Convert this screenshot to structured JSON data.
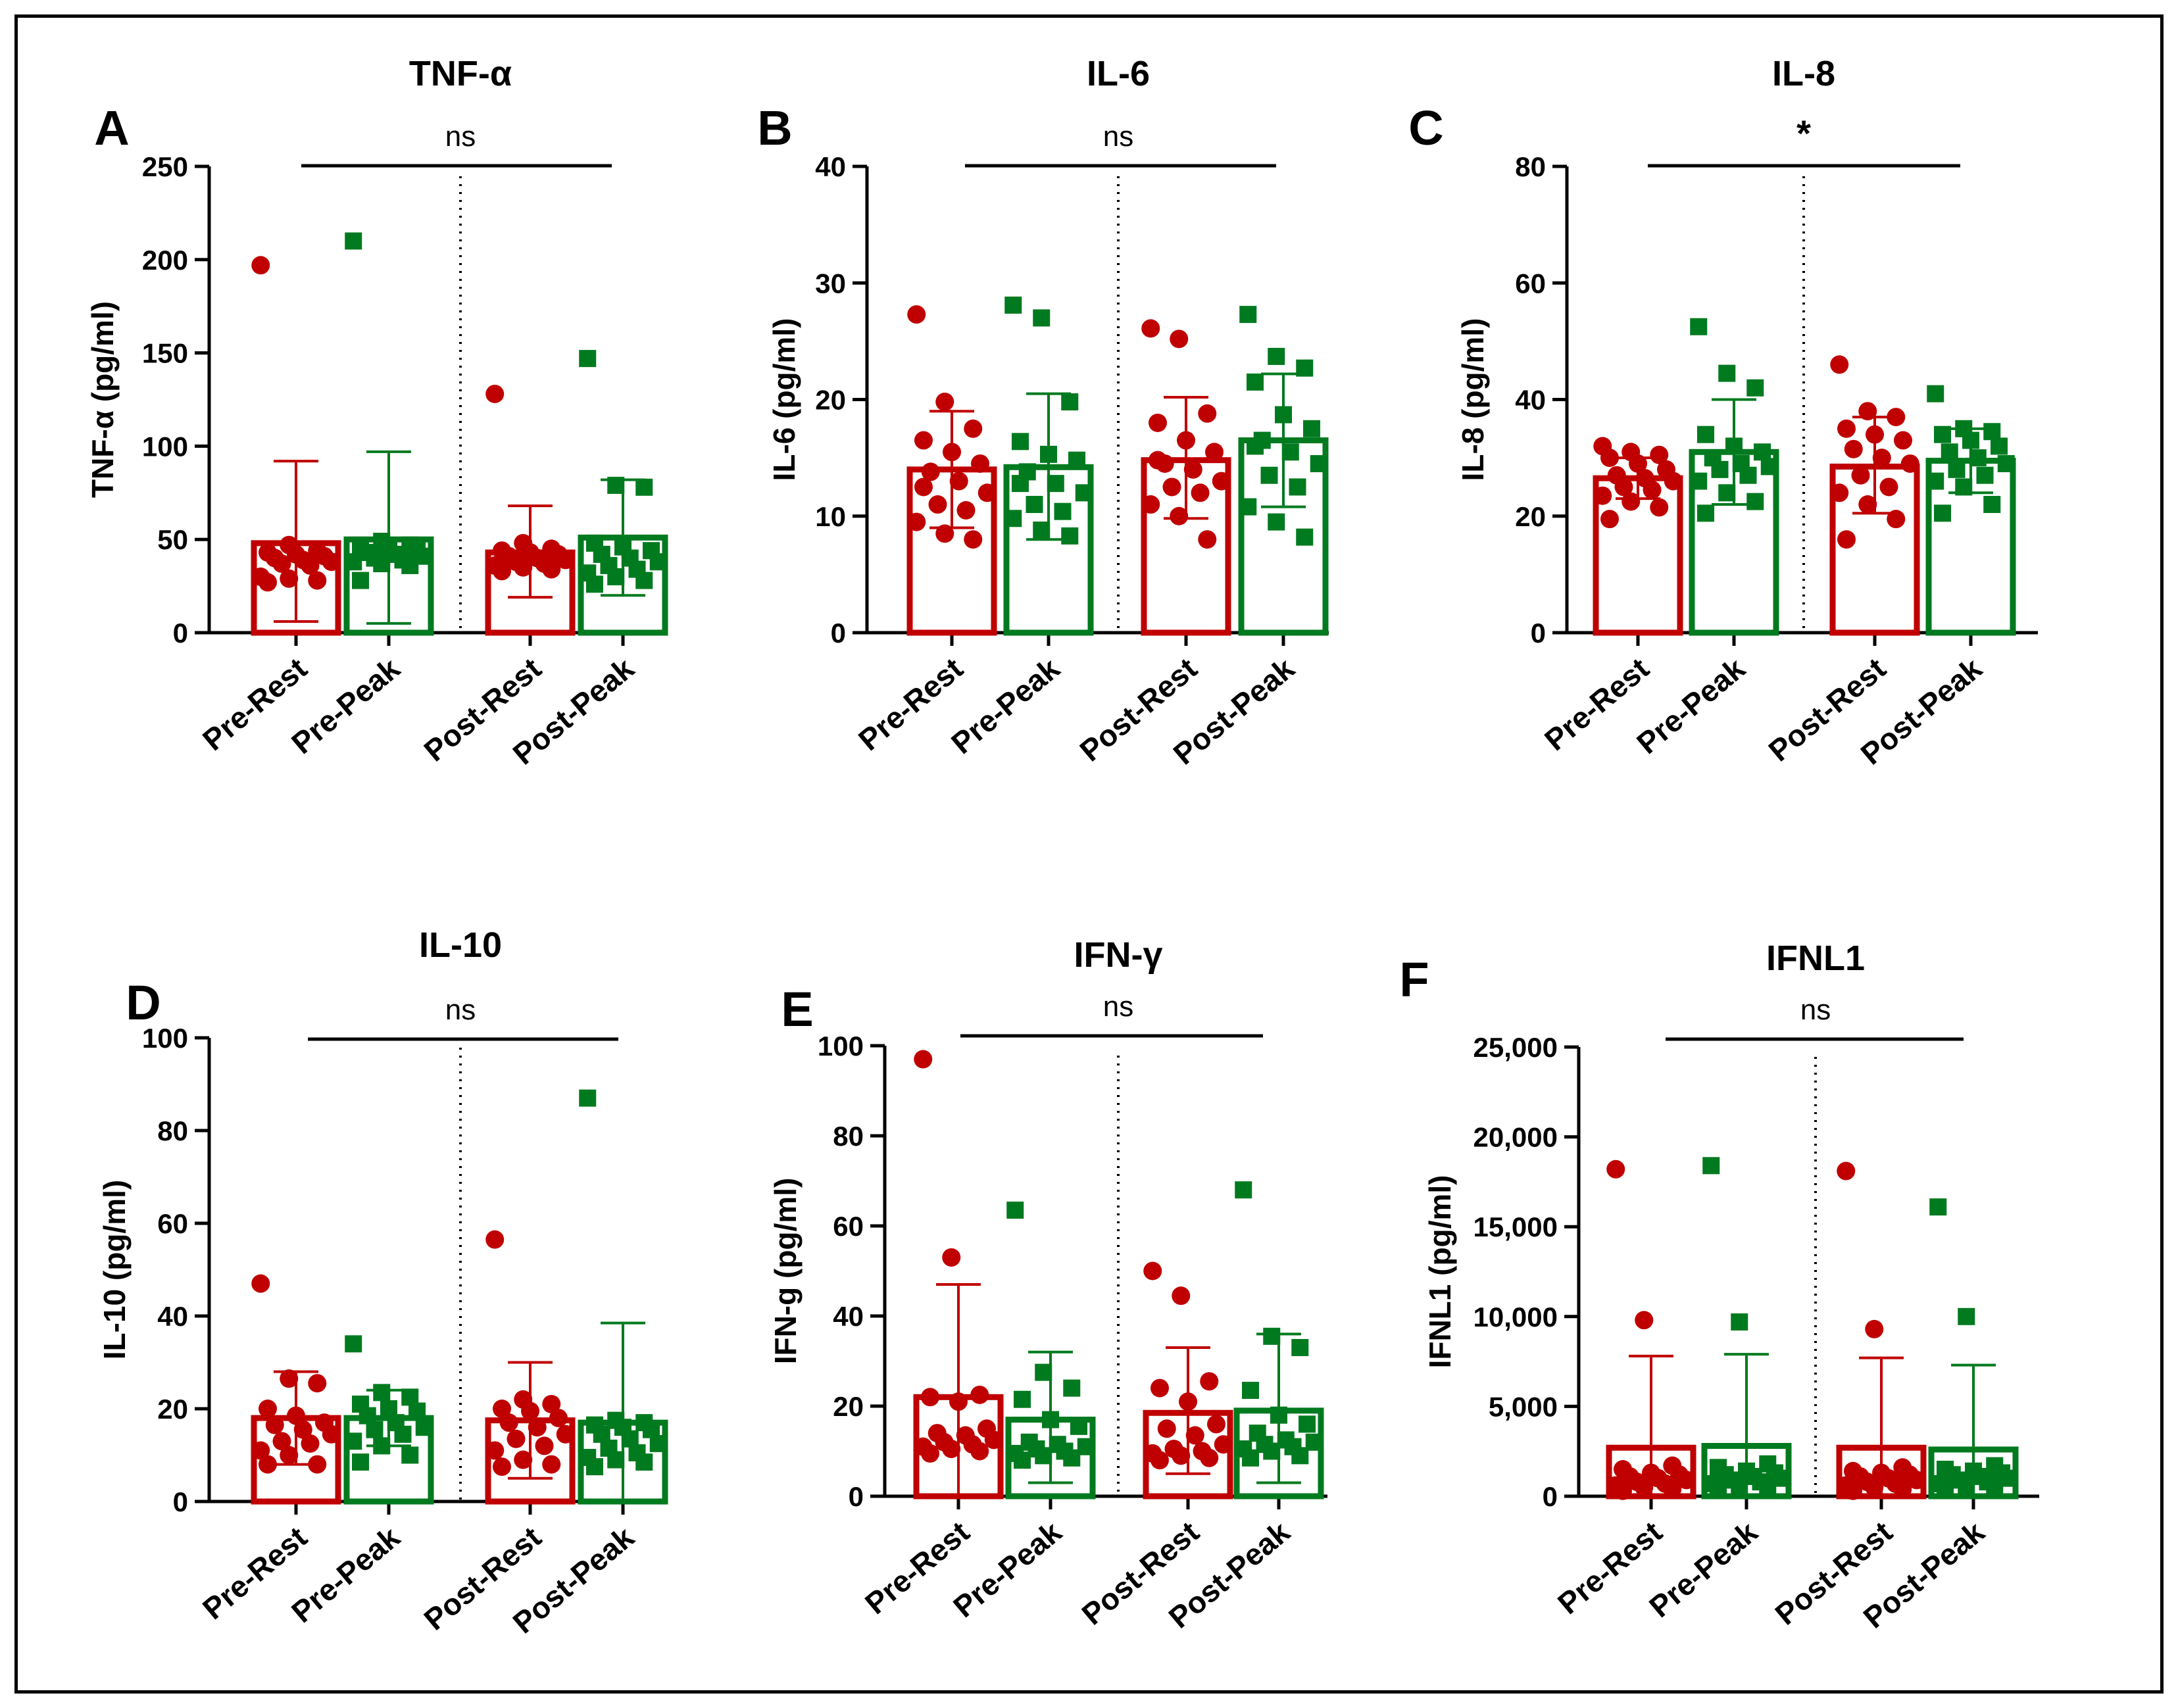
{
  "figure": {
    "panel_letters": [
      "A",
      "B",
      "C",
      "D",
      "E",
      "F"
    ]
  },
  "chart_data": [
    {
      "type": "bar",
      "letter": "A",
      "title": "TNF-α",
      "ylabel": "TNF-α (pg/ml)",
      "ylim": [
        0,
        250
      ],
      "yticks": [
        0,
        50,
        100,
        150,
        200,
        250
      ],
      "ytick_labels": [
        "0",
        "50",
        "100",
        "150",
        "200",
        "250"
      ],
      "categories": [
        "Pre-Rest",
        "Pre-Peak",
        "Post-Rest",
        "Post-Peak"
      ],
      "series_colors": [
        "#c00000",
        "#007a1f",
        "#c00000",
        "#007a1f"
      ],
      "markers": [
        "circle",
        "square",
        "circle",
        "square"
      ],
      "means": [
        48,
        50,
        43,
        51
      ],
      "error_upper": [
        92,
        97,
        68,
        82
      ],
      "error_lower": [
        6,
        5,
        19,
        20
      ],
      "points": [
        [
          197,
          47,
          44,
          43,
          42,
          41,
          40,
          39,
          38,
          37,
          36,
          30,
          29,
          28,
          27
        ],
        [
          210,
          49,
          47,
          46,
          45,
          44,
          43,
          42,
          41,
          40,
          39,
          38,
          37,
          36,
          28
        ],
        [
          128,
          48,
          45,
          44,
          43,
          42,
          41,
          40,
          39,
          38,
          37,
          36,
          35,
          34,
          33
        ],
        [
          147,
          79,
          78,
          48,
          46,
          44,
          42,
          40,
          38,
          36,
          34,
          32,
          30,
          28,
          26
        ]
      ],
      "significance": "ns"
    },
    {
      "type": "bar",
      "letter": "B",
      "title": "IL-6",
      "ylabel": "IL-6 (pg/ml)",
      "ylim": [
        0,
        40
      ],
      "yticks": [
        0,
        10,
        20,
        30,
        40
      ],
      "ytick_labels": [
        "0",
        "10",
        "20",
        "30",
        "40"
      ],
      "categories": [
        "Pre-Rest",
        "Pre-Peak",
        "Post-Rest",
        "Post-Peak"
      ],
      "series_colors": [
        "#c00000",
        "#007a1f",
        "#c00000",
        "#007a1f"
      ],
      "markers": [
        "circle",
        "square",
        "circle",
        "square"
      ],
      "means": [
        14,
        14.2,
        14.8,
        16.5
      ],
      "error_upper": [
        19,
        20.5,
        20.2,
        22.2
      ],
      "error_lower": [
        9,
        8,
        9.8,
        10.8
      ],
      "points": [
        [
          27.3,
          19.8,
          17.5,
          16.5,
          15.5,
          14.5,
          13.8,
          13,
          12,
          11,
          10.5,
          9.5,
          8.5,
          8,
          12.5
        ],
        [
          28.1,
          27,
          19.8,
          16.4,
          15.3,
          14.8,
          13.8,
          12.8,
          12,
          11,
          10.4,
          9.8,
          8.8,
          8.3,
          12.8
        ],
        [
          26.1,
          25.2,
          18.8,
          18,
          16.5,
          15.5,
          14.5,
          14,
          13,
          12.5,
          12,
          11,
          10,
          8,
          14.8
        ],
        [
          27.3,
          23.7,
          22.7,
          21.5,
          18.7,
          17.5,
          16.5,
          15.5,
          14.5,
          13.5,
          12.5,
          10.8,
          9.5,
          8.2,
          16
        ]
      ],
      "significance": "ns"
    },
    {
      "type": "bar",
      "letter": "C",
      "title": "IL-8",
      "ylabel": "IL-8 (pg/ml)",
      "ylim": [
        0,
        80
      ],
      "yticks": [
        0,
        20,
        40,
        60,
        80
      ],
      "ytick_labels": [
        "0",
        "20",
        "40",
        "60",
        "80"
      ],
      "categories": [
        "Pre-Rest",
        "Pre-Peak",
        "Post-Rest",
        "Post-Peak"
      ],
      "series_colors": [
        "#c00000",
        "#007a1f",
        "#c00000",
        "#007a1f"
      ],
      "markers": [
        "circle",
        "square",
        "circle",
        "square"
      ],
      "means": [
        26.5,
        31,
        28.5,
        29.5
      ],
      "error_upper": [
        30,
        40,
        37,
        35
      ],
      "error_lower": [
        23,
        22,
        20.5,
        24
      ],
      "points": [
        [
          32,
          31,
          30.5,
          30,
          29,
          28,
          27,
          26.5,
          26,
          25,
          24.5,
          23.5,
          22.5,
          21.5,
          19.5
        ],
        [
          52.5,
          44.5,
          42,
          34,
          32,
          31,
          30,
          29,
          28.5,
          28,
          27,
          26,
          24,
          22.5,
          20.5
        ],
        [
          46,
          38,
          37,
          35,
          34,
          33,
          31.5,
          30,
          29,
          27,
          25,
          24,
          22,
          19.5,
          16
        ],
        [
          41,
          35,
          34.5,
          34,
          33,
          32,
          31,
          30,
          29,
          28,
          27,
          26,
          25,
          22,
          20.5
        ]
      ],
      "significance": "*"
    },
    {
      "type": "bar",
      "letter": "D",
      "title": "IL-10",
      "ylabel": "IL-10 (pg/ml)",
      "ylim": [
        0,
        100
      ],
      "yticks": [
        0,
        20,
        40,
        60,
        80,
        100
      ],
      "ytick_labels": [
        "0",
        "20",
        "40",
        "60",
        "80",
        "100"
      ],
      "categories": [
        "Pre-Rest",
        "Pre-Peak",
        "Post-Rest",
        "Post-Peak"
      ],
      "series_colors": [
        "#c00000",
        "#007a1f",
        "#c00000",
        "#007a1f"
      ],
      "markers": [
        "circle",
        "square",
        "circle",
        "square"
      ],
      "means": [
        18,
        18,
        17.5,
        17
      ],
      "error_upper": [
        28,
        24,
        30,
        38.5
      ],
      "error_lower": [
        8,
        12,
        5,
        0
      ],
      "points": [
        [
          47,
          26.5,
          25.5,
          20,
          18.5,
          17,
          16.5,
          15.5,
          14.5,
          13,
          12.5,
          11,
          10,
          8,
          8
        ],
        [
          34,
          23.5,
          22.5,
          21,
          20,
          19.5,
          18.5,
          17,
          16,
          15.5,
          14.5,
          13,
          12,
          10,
          8.5
        ],
        [
          56.5,
          22,
          21,
          20,
          19.5,
          18,
          17,
          16,
          14.5,
          13.5,
          12,
          11,
          9,
          8,
          7.5
        ],
        [
          87,
          17.5,
          17,
          16.5,
          16,
          15.5,
          14.5,
          13.5,
          12.5,
          11.5,
          10.5,
          9.5,
          9,
          8.5,
          7.5
        ]
      ],
      "significance": "ns"
    },
    {
      "type": "bar",
      "letter": "E",
      "title": "IFN-γ",
      "ylabel": "IFN-g (pg/ml)",
      "ylim": [
        0,
        100
      ],
      "yticks": [
        0,
        20,
        40,
        60,
        80,
        100
      ],
      "ytick_labels": [
        "0",
        "20",
        "40",
        "60",
        "80",
        "100"
      ],
      "categories": [
        "Pre-Rest",
        "Pre-Peak",
        "Post-Rest",
        "Post-Peak"
      ],
      "series_colors": [
        "#c00000",
        "#007a1f",
        "#c00000",
        "#007a1f"
      ],
      "markers": [
        "circle",
        "square",
        "circle",
        "square"
      ],
      "means": [
        22,
        17,
        18.5,
        19
      ],
      "error_upper": [
        47,
        32,
        33,
        36
      ],
      "error_lower": [
        0,
        3,
        5,
        3
      ],
      "points": [
        [
          97,
          53,
          22.5,
          22,
          21,
          15,
          14,
          13.5,
          12.5,
          12,
          11.5,
          11,
          10.5,
          10,
          9.5
        ],
        [
          63.5,
          27.5,
          24,
          21.5,
          17,
          15.5,
          12,
          11.5,
          11,
          10.5,
          10,
          9.5,
          9,
          8.5,
          8
        ],
        [
          50,
          44.5,
          25.5,
          24,
          21,
          16,
          15,
          13.5,
          11.5,
          10.5,
          10,
          9.5,
          9,
          8.5,
          8
        ],
        [
          68,
          35.5,
          33,
          23.5,
          18,
          16,
          14,
          12.5,
          12,
          11.5,
          11,
          10.5,
          10,
          9,
          8.5
        ]
      ],
      "significance": "ns"
    },
    {
      "type": "bar",
      "letter": "F",
      "title": "IFNL1",
      "ylabel": "IFNL1 (pg/ml)",
      "ylim": [
        0,
        25000
      ],
      "yticks": [
        0,
        5000,
        10000,
        15000,
        20000,
        25000
      ],
      "ytick_labels": [
        "0",
        "5,000",
        "10,000",
        "15,000",
        "20,000",
        "25,000"
      ],
      "categories": [
        "Pre-Rest",
        "Pre-Peak",
        "Post-Rest",
        "Post-Peak"
      ],
      "series_colors": [
        "#c00000",
        "#007a1f",
        "#c00000",
        "#007a1f"
      ],
      "markers": [
        "circle",
        "square",
        "circle",
        "square"
      ],
      "means": [
        2700,
        2800,
        2700,
        2600
      ],
      "error_upper": [
        7800,
        7900,
        7700,
        7300
      ],
      "error_lower": [
        0,
        0,
        0,
        0
      ],
      "points": [
        [
          18200,
          9800,
          1700,
          1500,
          1300,
          1200,
          1100,
          1000,
          900,
          800,
          700,
          600,
          500,
          400,
          300
        ],
        [
          18400,
          9700,
          1800,
          1600,
          1400,
          1300,
          1200,
          1100,
          1000,
          900,
          800,
          700,
          600,
          500,
          400
        ],
        [
          18100,
          9300,
          1600,
          1400,
          1300,
          1200,
          1100,
          1000,
          900,
          800,
          700,
          600,
          500,
          400,
          300
        ],
        [
          16100,
          10000,
          1700,
          1500,
          1400,
          1300,
          1200,
          1100,
          1000,
          900,
          800,
          700,
          600,
          500,
          400
        ]
      ],
      "significance": "ns"
    }
  ]
}
